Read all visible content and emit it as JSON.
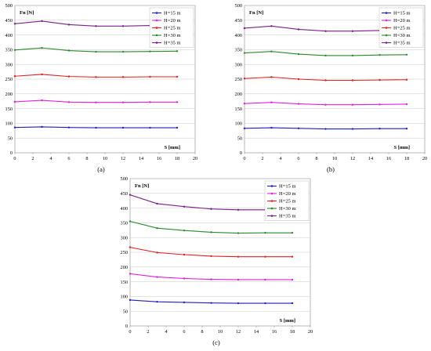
{
  "chart_data": [
    {
      "type": "line",
      "panel_label": "(a)",
      "ylabel": "Fn [N]",
      "xlabel": "S [mm]",
      "xlim": [
        0,
        20
      ],
      "ylim": [
        0,
        500
      ],
      "xticks": [
        0,
        2,
        4,
        6,
        8,
        10,
        12,
        14,
        16,
        18,
        20
      ],
      "yticks": [
        0,
        50,
        100,
        150,
        200,
        250,
        300,
        350,
        400,
        450,
        500
      ],
      "grid": "horizontal",
      "legend_position": "top-right",
      "x": [
        0,
        3,
        6,
        9,
        12,
        15,
        18
      ],
      "series": [
        {
          "name": "H=15 m",
          "color": "#1f1fbf",
          "values": [
            86,
            88,
            86,
            85,
            85,
            85,
            85
          ]
        },
        {
          "name": "H=20 m",
          "color": "#e020e0",
          "values": [
            173,
            178,
            172,
            171,
            171,
            172,
            172
          ]
        },
        {
          "name": "H=25 m",
          "color": "#e02020",
          "values": [
            260,
            266,
            259,
            257,
            257,
            258,
            258
          ]
        },
        {
          "name": "H=30 m",
          "color": "#2a8a2a",
          "values": [
            349,
            356,
            347,
            343,
            343,
            344,
            345
          ]
        },
        {
          "name": "H=35 m",
          "color": "#7a1f8a",
          "values": [
            438,
            447,
            435,
            430,
            430,
            432,
            433
          ]
        }
      ]
    },
    {
      "type": "line",
      "panel_label": "(b)",
      "ylabel": "Fn [N]",
      "xlabel": "S [mm]",
      "xlim": [
        0,
        20
      ],
      "ylim": [
        0,
        500
      ],
      "xticks": [
        0,
        2,
        4,
        6,
        8,
        10,
        12,
        14,
        16,
        18,
        20
      ],
      "yticks": [
        0,
        50,
        100,
        150,
        200,
        250,
        300,
        350,
        400,
        450,
        500
      ],
      "grid": "horizontal",
      "legend_position": "top-right",
      "x": [
        0,
        3,
        6,
        9,
        12,
        15,
        18
      ],
      "series": [
        {
          "name": "H=15 m",
          "color": "#1f1fbf",
          "values": [
            83,
            85,
            83,
            81,
            81,
            82,
            82
          ]
        },
        {
          "name": "H=20 m",
          "color": "#e020e0",
          "values": [
            167,
            171,
            166,
            163,
            163,
            164,
            165
          ]
        },
        {
          "name": "H=25 m",
          "color": "#e02020",
          "values": [
            252,
            257,
            250,
            246,
            246,
            247,
            248
          ]
        },
        {
          "name": "H=30 m",
          "color": "#2a8a2a",
          "values": [
            339,
            344,
            335,
            330,
            330,
            332,
            333
          ]
        },
        {
          "name": "H=35 m",
          "color": "#7a1f8a",
          "values": [
            423,
            430,
            419,
            413,
            413,
            415,
            416
          ]
        }
      ]
    },
    {
      "type": "line",
      "panel_label": "(c)",
      "ylabel": "Fn [N]",
      "xlabel": "S [mm]",
      "xlim": [
        0,
        20
      ],
      "ylim": [
        0,
        500
      ],
      "xticks": [
        0,
        2,
        4,
        6,
        8,
        10,
        12,
        14,
        16,
        18,
        20
      ],
      "yticks": [
        0,
        50,
        100,
        150,
        200,
        250,
        300,
        350,
        400,
        450,
        500
      ],
      "grid": "horizontal",
      "legend_position": "top-right",
      "x": [
        0,
        3,
        6,
        9,
        12,
        15,
        18
      ],
      "series": [
        {
          "name": "H=15 m",
          "color": "#1f1fbf",
          "values": [
            88,
            82,
            80,
            78,
            77,
            77,
            77
          ]
        },
        {
          "name": "H=20 m",
          "color": "#e020e0",
          "values": [
            177,
            166,
            161,
            158,
            157,
            157,
            157
          ]
        },
        {
          "name": "H=25 m",
          "color": "#e02020",
          "values": [
            267,
            249,
            242,
            237,
            235,
            235,
            235
          ]
        },
        {
          "name": "H=30 m",
          "color": "#2a8a2a",
          "values": [
            355,
            332,
            324,
            318,
            315,
            316,
            316
          ]
        },
        {
          "name": "H=35 m",
          "color": "#7a1f8a",
          "values": [
            445,
            415,
            405,
            397,
            394,
            394,
            395
          ]
        }
      ]
    }
  ]
}
